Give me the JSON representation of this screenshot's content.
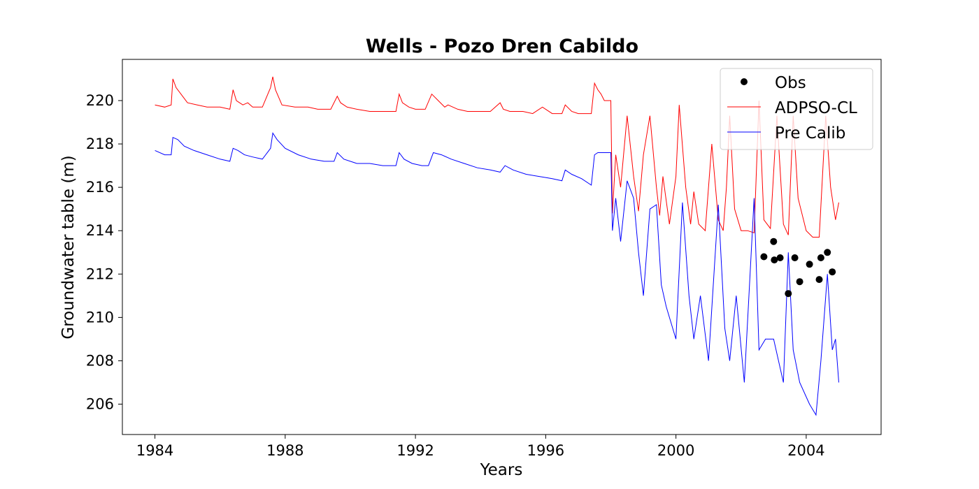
{
  "chart_data": {
    "type": "line",
    "title": "Wells - Pozo Dren Cabildo",
    "xlabel": "Years",
    "ylabel": "Groundwater table (m)",
    "xlim": [
      1983.0,
      2006.3
    ],
    "ylim": [
      204.6,
      221.9
    ],
    "xticks": [
      1984,
      1988,
      1992,
      1996,
      2000,
      2004
    ],
    "yticks": [
      206,
      208,
      210,
      212,
      214,
      216,
      218,
      220
    ],
    "grid": false,
    "legend": "top-right",
    "legend_entries": [
      "Obs",
      "ADPSO-CL",
      "Pre Calib"
    ],
    "colors": {
      "obs": "#000000",
      "adpso": "#ff0000",
      "precalib": "#0000ff"
    },
    "obs": {
      "name": "Obs",
      "x": [
        2002.7,
        2003.0,
        2003.02,
        2003.2,
        2003.45,
        2003.65,
        2003.8,
        2004.1,
        2004.4,
        2004.45,
        2004.65,
        2004.8
      ],
      "y": [
        212.8,
        213.5,
        212.65,
        212.75,
        211.1,
        212.75,
        211.65,
        212.45,
        211.75,
        212.75,
        213.0,
        212.1
      ]
    },
    "series": [
      {
        "name": "ADPSO-CL",
        "x": [
          1984.0,
          1984.3,
          1984.5,
          1984.55,
          1984.65,
          1984.8,
          1985.0,
          1985.3,
          1985.6,
          1986.0,
          1986.3,
          1986.4,
          1986.5,
          1986.7,
          1986.85,
          1987.0,
          1987.3,
          1987.55,
          1987.62,
          1987.7,
          1987.9,
          1988.3,
          1988.7,
          1989.0,
          1989.4,
          1989.6,
          1989.7,
          1989.9,
          1990.2,
          1990.6,
          1991.0,
          1991.4,
          1991.5,
          1991.6,
          1991.8,
          1992.0,
          1992.3,
          1992.5,
          1992.7,
          1992.9,
          1993.0,
          1993.3,
          1993.6,
          1993.9,
          1994.3,
          1994.6,
          1994.7,
          1994.9,
          1995.3,
          1995.6,
          1995.9,
          1996.2,
          1996.5,
          1996.6,
          1996.8,
          1997.0,
          1997.4,
          1997.5,
          1997.6,
          1997.7,
          1997.8,
          1998.0,
          1998.05,
          1998.15,
          1998.3,
          1998.5,
          1998.7,
          1998.85,
          1999.0,
          1999.2,
          1999.4,
          1999.5,
          1999.6,
          1999.8,
          2000.0,
          2000.1,
          2000.3,
          2000.45,
          2000.55,
          2000.7,
          2000.9,
          2001.1,
          2001.3,
          2001.45,
          2001.55,
          2001.65,
          2001.8,
          2002.0,
          2002.2,
          2002.4,
          2002.55,
          2002.7,
          2002.9,
          2003.1,
          2003.3,
          2003.45,
          2003.6,
          2003.75,
          2004.0,
          2004.2,
          2004.4,
          2004.6,
          2004.75,
          2004.9,
          2005.0
        ],
        "y": [
          219.8,
          219.7,
          219.8,
          221.0,
          220.6,
          220.3,
          219.9,
          219.8,
          219.7,
          219.7,
          219.6,
          220.5,
          220.0,
          219.8,
          219.9,
          219.7,
          219.7,
          220.6,
          221.1,
          220.5,
          219.8,
          219.7,
          219.7,
          219.6,
          219.6,
          220.2,
          219.9,
          219.7,
          219.6,
          219.5,
          219.5,
          219.5,
          220.3,
          219.9,
          219.7,
          219.6,
          219.6,
          220.3,
          220.0,
          219.7,
          219.8,
          219.6,
          219.5,
          219.5,
          219.5,
          219.9,
          219.6,
          219.5,
          219.5,
          219.4,
          219.7,
          219.4,
          219.4,
          219.8,
          219.5,
          219.4,
          219.4,
          220.8,
          220.5,
          220.3,
          220.0,
          220.0,
          214.8,
          217.5,
          216.0,
          219.3,
          216.5,
          214.9,
          217.5,
          219.3,
          216.0,
          214.7,
          216.5,
          214.3,
          216.5,
          219.8,
          216.0,
          214.3,
          215.8,
          214.3,
          214.0,
          218.0,
          214.5,
          214.0,
          216.0,
          219.3,
          215.0,
          214.0,
          214.0,
          213.9,
          220.0,
          214.5,
          214.1,
          219.3,
          214.3,
          213.8,
          219.3,
          215.5,
          214.0,
          213.7,
          213.7,
          219.3,
          216.0,
          214.5,
          215.3
        ]
      },
      {
        "name": "Pre Calib",
        "x": [
          1984.0,
          1984.3,
          1984.5,
          1984.55,
          1984.7,
          1984.9,
          1985.2,
          1985.6,
          1986.0,
          1986.3,
          1986.4,
          1986.55,
          1986.75,
          1987.0,
          1987.3,
          1987.55,
          1987.62,
          1987.75,
          1988.0,
          1988.4,
          1988.8,
          1989.2,
          1989.5,
          1989.6,
          1989.8,
          1990.2,
          1990.6,
          1991.0,
          1991.4,
          1991.5,
          1991.65,
          1991.9,
          1992.2,
          1992.4,
          1992.55,
          1992.8,
          1993.1,
          1993.5,
          1993.9,
          1994.3,
          1994.6,
          1994.75,
          1995.0,
          1995.4,
          1995.8,
          1996.2,
          1996.5,
          1996.6,
          1996.8,
          1997.1,
          1997.4,
          1997.5,
          1997.6,
          1997.8,
          1998.0,
          1998.05,
          1998.15,
          1998.3,
          1998.5,
          1998.7,
          1998.85,
          1999.0,
          1999.2,
          1999.4,
          1999.55,
          1999.7,
          2000.0,
          2000.2,
          2000.4,
          2000.55,
          2000.75,
          2001.0,
          2001.3,
          2001.5,
          2001.65,
          2001.85,
          2002.1,
          2002.4,
          2002.55,
          2002.75,
          2003.0,
          2003.3,
          2003.45,
          2003.6,
          2003.8,
          2004.1,
          2004.3,
          2004.45,
          2004.65,
          2004.8,
          2004.9,
          2005.0
        ],
        "y": [
          217.7,
          217.5,
          217.5,
          218.3,
          218.2,
          217.9,
          217.7,
          217.5,
          217.3,
          217.2,
          217.8,
          217.7,
          217.5,
          217.4,
          217.3,
          217.8,
          218.5,
          218.2,
          217.8,
          217.5,
          217.3,
          217.2,
          217.2,
          217.6,
          217.3,
          217.1,
          217.1,
          217.0,
          217.0,
          217.6,
          217.3,
          217.1,
          217.0,
          217.0,
          217.6,
          217.5,
          217.3,
          217.1,
          216.9,
          216.8,
          216.7,
          217.0,
          216.8,
          216.6,
          216.5,
          216.4,
          216.3,
          216.8,
          216.6,
          216.4,
          216.1,
          217.5,
          217.6,
          217.6,
          217.6,
          214.0,
          215.5,
          213.5,
          216.3,
          215.5,
          213.0,
          211.0,
          215.0,
          215.2,
          211.5,
          210.5,
          209.0,
          215.3,
          211.0,
          209.0,
          211.0,
          208.0,
          215.2,
          209.5,
          208.0,
          211.0,
          207.0,
          215.5,
          208.5,
          209.0,
          209.0,
          207.0,
          213.0,
          208.5,
          207.0,
          206.0,
          205.5,
          208.0,
          212.0,
          208.5,
          209.0,
          207.0
        ]
      }
    ]
  }
}
